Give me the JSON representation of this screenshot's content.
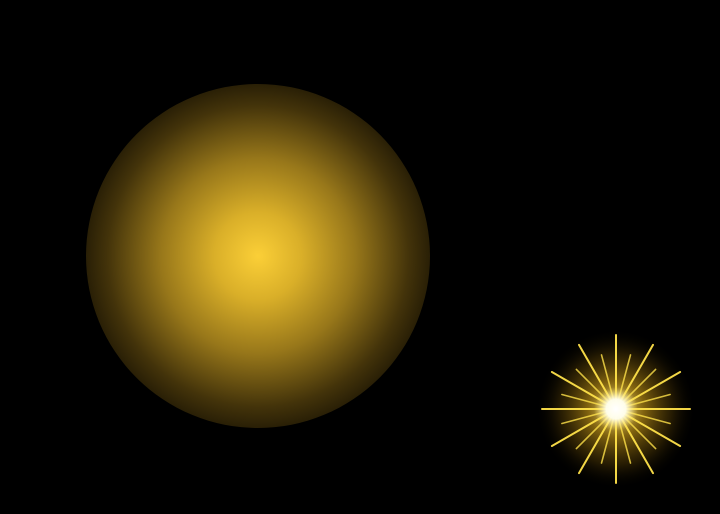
{
  "scene": {
    "background_color": "#000000",
    "orb": {
      "icon": "soft-glow-orb",
      "center_color": "#FBCF37",
      "edge_color": "#000000"
    },
    "starburst": {
      "icon": "sparkle-starburst-icon",
      "core_color": "#FFFFFF",
      "ray_color": "#FFE24A",
      "glow_color": "#D9A514"
    }
  }
}
